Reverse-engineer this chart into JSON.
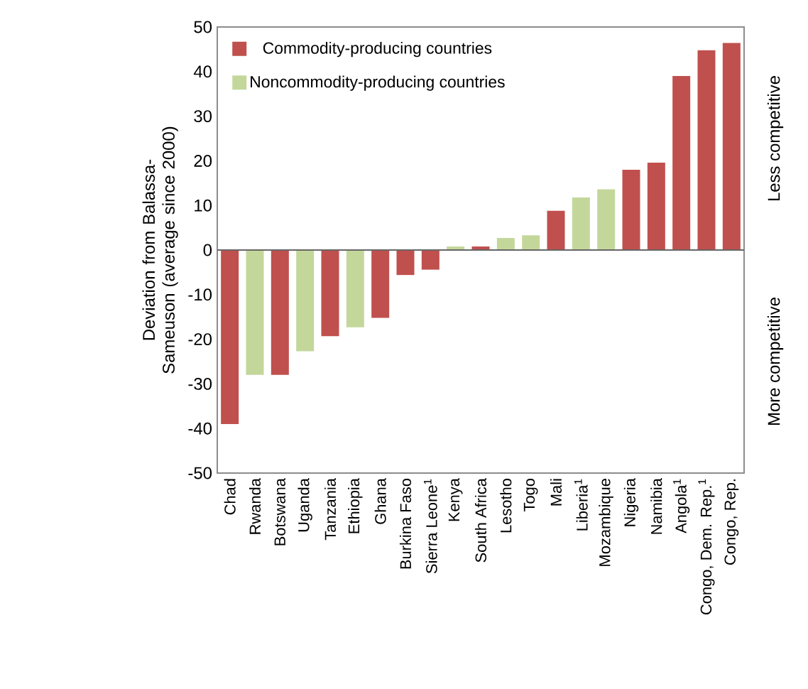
{
  "chart_data": {
    "type": "bar",
    "ylabel": "Deviation from Balassa-Sameuson (average since 2000)",
    "categories": [
      "Chad",
      "Rwanda",
      "Botswana",
      "Uganda",
      "Tanzania",
      "Ethiopia",
      "Ghana",
      "Burkina Faso",
      "Sierra Leone$^{1}$",
      "Kenya",
      "South Africa",
      "Lesotho",
      "Togo",
      "Mali",
      "Liberia$^{1}$",
      "Mozambique",
      "Nigeria",
      "Namibia",
      "Angola$^{1}$",
      "Congo, Dem. Rep.$^{1}$",
      "Congo, Rep."
    ],
    "series": [
      {
        "name": "Commodity-producing countries",
        "color": "#c0504d",
        "values": [
          -39,
          null,
          -28,
          null,
          -19.3,
          null,
          -15.2,
          -5.6,
          -4.4,
          null,
          0.8,
          null,
          null,
          8.8,
          null,
          null,
          18,
          19.6,
          39,
          44.8,
          46.4
        ]
      },
      {
        "name": "Noncommodity-producing countries",
        "color": "#c4d79b",
        "values": [
          null,
          -28,
          null,
          -22.7,
          null,
          -17.3,
          null,
          null,
          null,
          0.8,
          null,
          2.7,
          3.3,
          null,
          11.8,
          13.6,
          null,
          null,
          null,
          null,
          null
        ]
      }
    ],
    "ylim": [
      -50,
      50
    ],
    "yticks": [
      -50,
      -40,
      -30,
      -20,
      -10,
      0,
      10,
      20,
      30,
      40,
      50
    ],
    "legend": "top left",
    "annotations": [
      "Less competitive",
      "More competitive"
    ]
  }
}
